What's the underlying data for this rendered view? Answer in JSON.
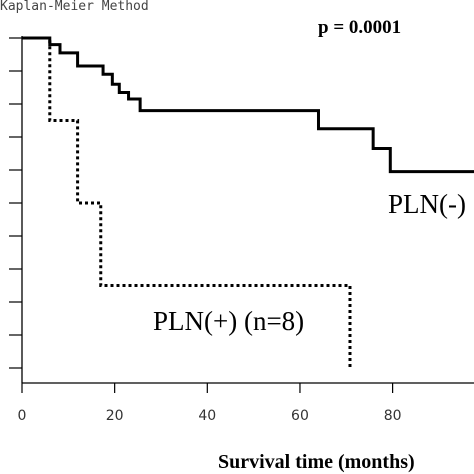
{
  "chart_data": {
    "type": "step",
    "title": "Kaplan-Meier Method",
    "annotation": "p = 0.0001",
    "x_label": "Survival time (months)",
    "xlim": [
      0,
      98
    ],
    "xticks": [
      0,
      20,
      40,
      60,
      80
    ],
    "ylim": [
      0,
      1
    ],
    "yticks": [
      0,
      0.1,
      0.2,
      0.3,
      0.4,
      0.5,
      0.6,
      0.7,
      0.8,
      0.9,
      1
    ],
    "series": [
      {
        "name": "PLN(-)",
        "color": "#000000",
        "dash": "solid",
        "x": [
          0,
          6,
          8.2,
          12,
          17.5,
          19.5,
          21,
          23,
          25.5,
          64,
          75.8,
          79.5,
          98
        ],
        "values": [
          1,
          0.98,
          0.955,
          0.915,
          0.89,
          0.86,
          0.835,
          0.815,
          0.78,
          0.725,
          0.665,
          0.595,
          0.595
        ]
      },
      {
        "name": "PLN(+) (n=8)",
        "color": "#000000",
        "dash": "dotted",
        "x": [
          0,
          6,
          12,
          17,
          70.8
        ],
        "values": [
          1,
          0.75,
          0.5,
          0.25,
          0
        ]
      }
    ]
  }
}
